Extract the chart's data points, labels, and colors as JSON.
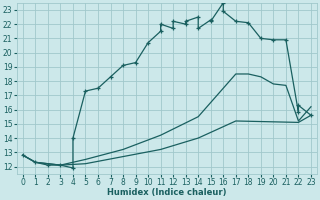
{
  "xlabel": "Humidex (Indice chaleur)",
  "bg_color": "#cce8ea",
  "grid_color": "#a0c8cc",
  "line_color": "#1a6060",
  "xlim": [
    -0.5,
    23.5
  ],
  "ylim": [
    11.5,
    23.5
  ],
  "yticks": [
    12,
    13,
    14,
    15,
    16,
    17,
    18,
    19,
    20,
    21,
    22,
    23
  ],
  "xticks": [
    0,
    1,
    2,
    3,
    4,
    5,
    6,
    7,
    8,
    9,
    10,
    11,
    12,
    13,
    14,
    15,
    16,
    17,
    18,
    19,
    20,
    21,
    22,
    23
  ],
  "curve1_x": [
    0,
    1,
    2,
    3,
    4,
    4,
    5,
    6,
    7,
    8,
    9,
    10,
    11,
    11,
    12,
    12,
    13,
    13,
    14,
    14,
    15,
    15,
    16,
    16,
    17,
    18,
    19,
    20,
    21,
    22,
    22,
    23
  ],
  "curve1_y": [
    12.8,
    12.3,
    12.1,
    12.1,
    11.9,
    14.0,
    17.3,
    17.5,
    18.3,
    19.1,
    19.3,
    20.7,
    21.5,
    22.0,
    21.7,
    22.2,
    22.0,
    22.2,
    22.5,
    21.7,
    22.3,
    22.2,
    23.5,
    22.9,
    22.2,
    22.1,
    21.0,
    20.9,
    20.9,
    15.8,
    16.3,
    15.6
  ],
  "curve2_x": [
    0,
    1,
    3,
    5,
    8,
    11,
    14,
    17,
    18,
    19,
    20,
    21,
    22,
    23
  ],
  "curve2_y": [
    12.8,
    12.3,
    12.1,
    12.5,
    13.2,
    14.2,
    15.5,
    18.5,
    18.5,
    18.3,
    17.8,
    17.7,
    15.2,
    16.2
  ],
  "curve3_x": [
    0,
    1,
    3,
    5,
    8,
    11,
    14,
    17,
    22,
    23
  ],
  "curve3_y": [
    12.8,
    12.3,
    12.1,
    12.2,
    12.7,
    13.2,
    14.0,
    15.2,
    15.1,
    15.6
  ]
}
